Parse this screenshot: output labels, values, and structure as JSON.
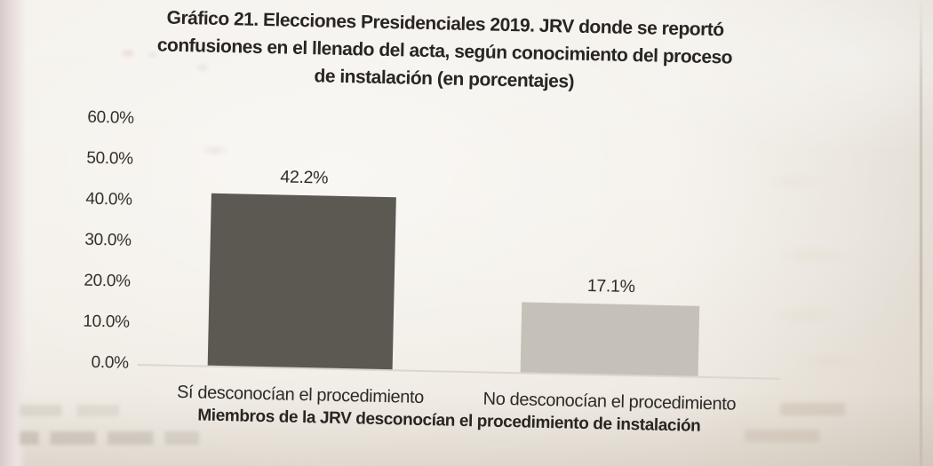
{
  "chart_data": {
    "type": "bar",
    "title": "Gráfico 21. Elecciones Presidenciales 2019. JRV donde se reportó confusiones en el llenado del acta, según conocimiento del proceso de instalación (en porcentajes)",
    "title_lines": [
      "Gráfico 21. Elecciones Presidenciales 2019. JRV donde se reportó",
      "confusiones en el llenado del acta, según conocimiento del proceso",
      "de instalación (en porcentajes)"
    ],
    "categories": [
      "Sí desconocían el procedimiento",
      "No desconocían el procedimiento"
    ],
    "values": [
      42.2,
      17.1
    ],
    "value_labels": [
      "42.2%",
      "17.1%"
    ],
    "xlabel": "Miembros de la JRV desconocían el procedimiento de instalación",
    "ylabel": "",
    "yticks": [
      "60.0%",
      "50.0%",
      "40.0%",
      "30.0%",
      "20.0%",
      "10.0%",
      "0.0%"
    ],
    "ylim": [
      0,
      60
    ],
    "grid": false,
    "legend": "none",
    "bar_colors": [
      "#5c5852",
      "#c5c1b9"
    ],
    "colors": {
      "paper": "#f2eee7",
      "text": "#2b2825",
      "baseline": "#dcd7ce",
      "page_edge": "#dccfce"
    }
  }
}
